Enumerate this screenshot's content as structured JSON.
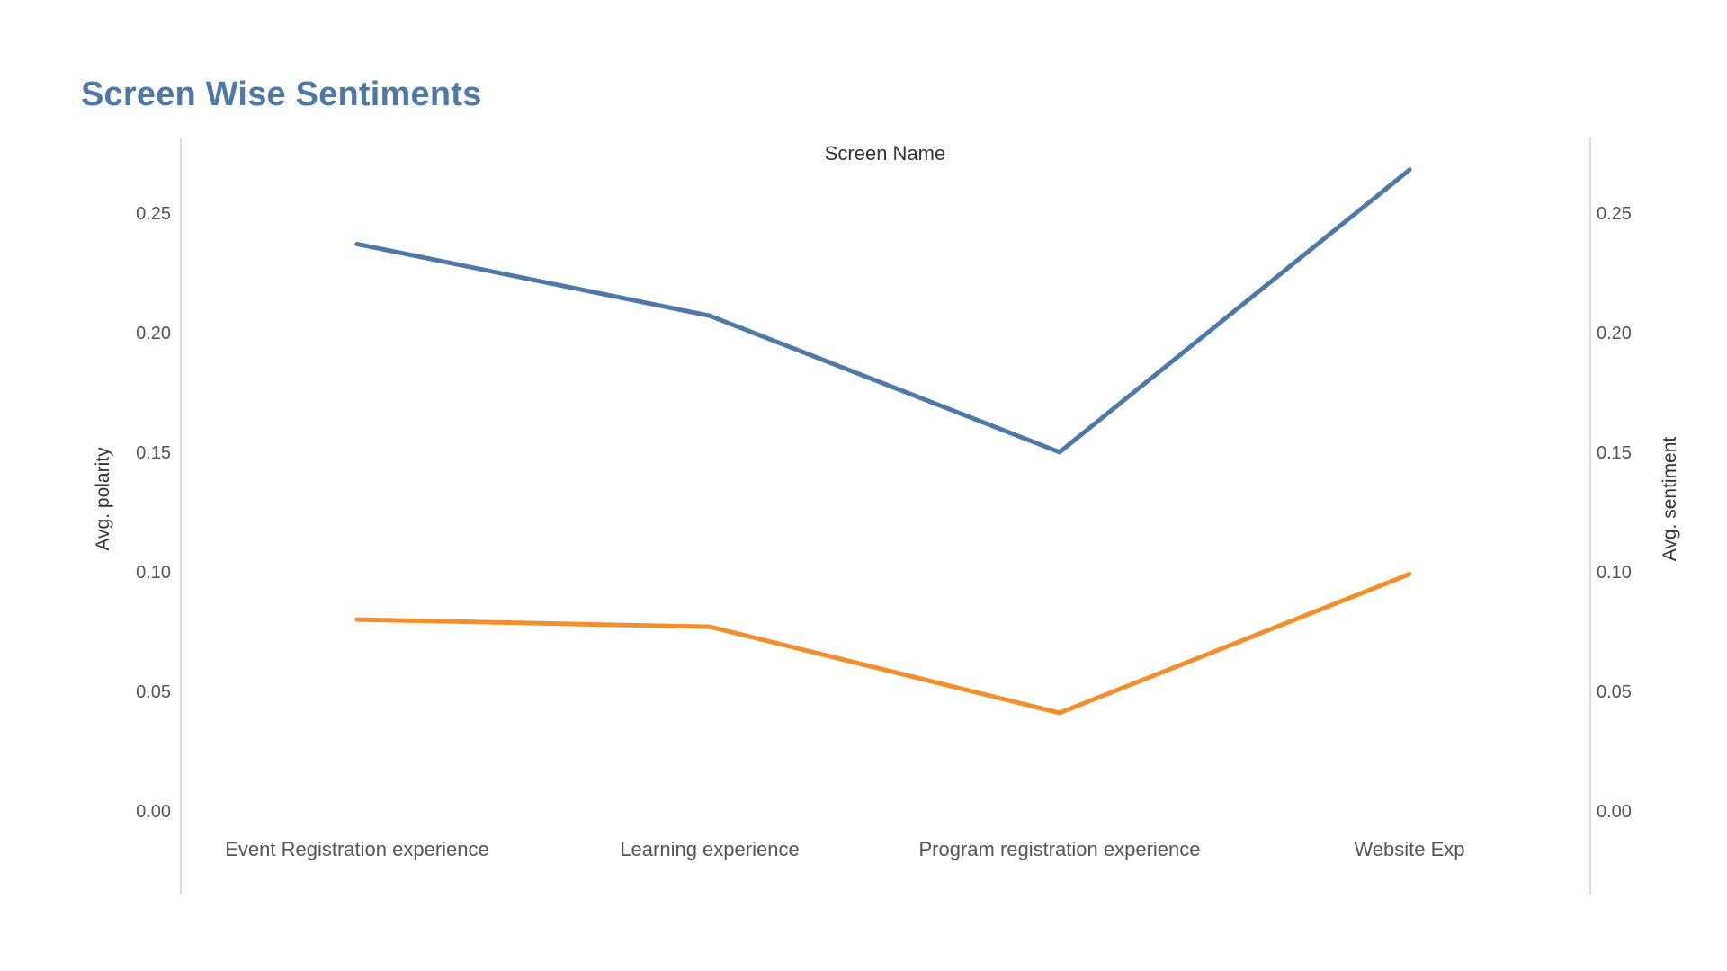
{
  "chart_data": {
    "type": "line",
    "title": "Screen Wise Sentiments",
    "column_header": "Screen Name",
    "categories": [
      "Event Registration experience",
      "Learning experience",
      "Program registration experience",
      "Website Exp"
    ],
    "series": [
      {
        "name": "Avg. polarity",
        "axis": "left",
        "color": "#4e79a7",
        "values": [
          0.237,
          0.207,
          0.15,
          0.268
        ]
      },
      {
        "name": "Avg. sentiment",
        "axis": "right",
        "color": "#f28e2b",
        "values": [
          0.08,
          0.077,
          0.041,
          0.099
        ]
      }
    ],
    "y_left": {
      "label": "Avg. polarity",
      "ylim": [
        0,
        0.28
      ],
      "ticks": [
        "0.00",
        "0.05",
        "0.10",
        "0.15",
        "0.20",
        "0.25"
      ]
    },
    "y_right": {
      "label": "Avg. sentiment",
      "ylim": [
        0,
        0.28
      ],
      "ticks": [
        "0.00",
        "0.05",
        "0.10",
        "0.15",
        "0.20",
        "0.25"
      ]
    },
    "grid": false,
    "legend": "none"
  }
}
